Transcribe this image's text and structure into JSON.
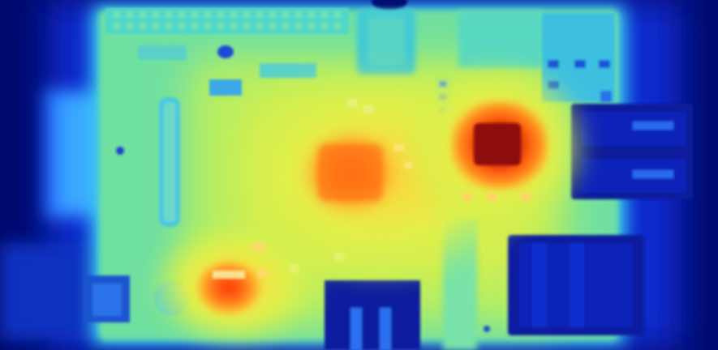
{
  "image": {
    "kind": "thermal-camera-photo",
    "subject": "single-board-computer",
    "colormap": "jet",
    "palette": {
      "cold": "#00086a",
      "cool": "#1a4dff",
      "warm_body": "#6fe0a0",
      "yellow": "#d8ee4e",
      "hot": "#ff7a18",
      "hottest": "#a10f0a"
    }
  }
}
